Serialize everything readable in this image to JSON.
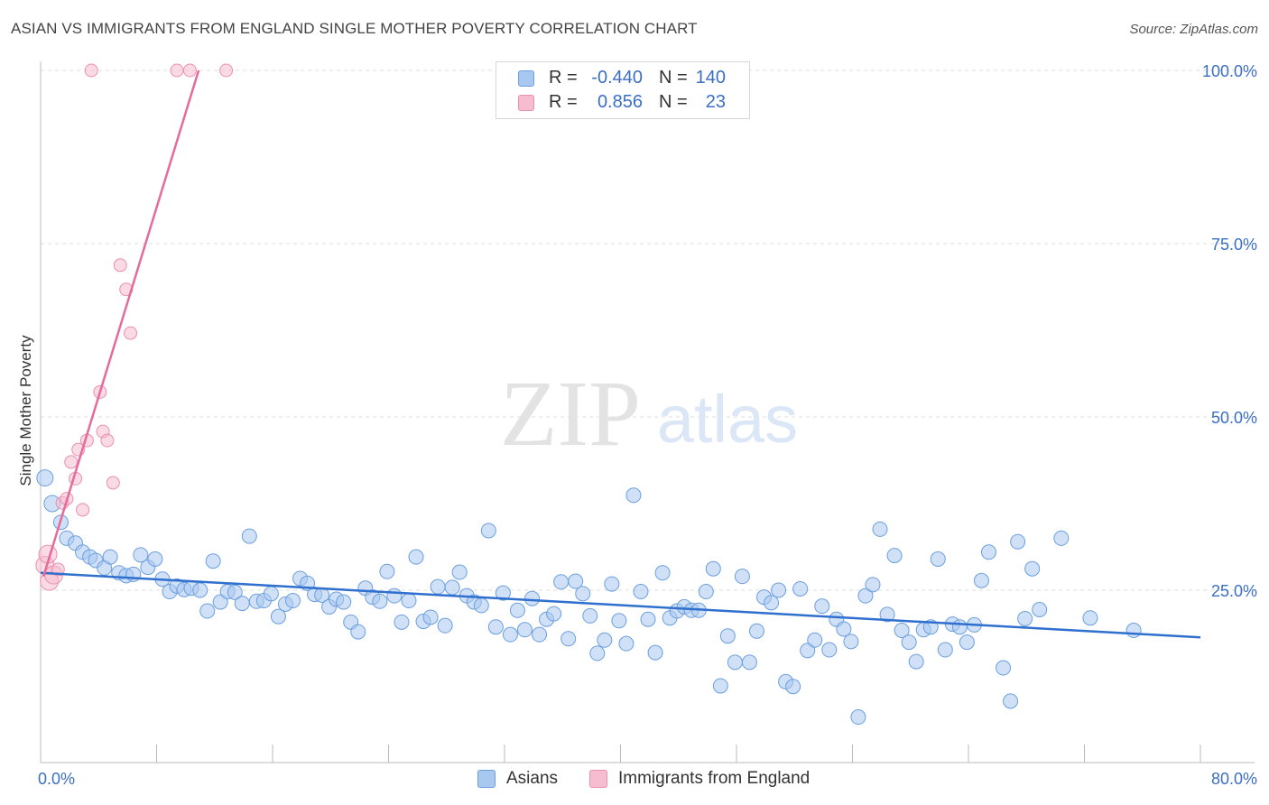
{
  "title": "ASIAN VS IMMIGRANTS FROM ENGLAND SINGLE MOTHER POVERTY CORRELATION CHART",
  "source": "Source: ZipAtlas.com",
  "watermark": {
    "zip": "ZIP",
    "atlas": "atlas"
  },
  "legend_top": [
    {
      "r_label": "R =",
      "r_value": "-0.440",
      "n_label": "N =",
      "n_value": "140"
    },
    {
      "r_label": "R =",
      "r_value": "0.856",
      "n_label": "N =",
      "n_value": "23"
    }
  ],
  "colors": {
    "blue_fill": "#a9c8f0",
    "blue_stroke": "#6b9fe0",
    "blue_line": "#2f6fcd",
    "pink_fill": "#f6bcd0",
    "pink_stroke": "#ec8fb0",
    "pink_line": "#e46b9a",
    "axis_label": "#3b6fc4",
    "grid": "#dedede"
  },
  "chart_data": {
    "type": "scatter",
    "title": "ASIAN VS IMMIGRANTS FROM ENGLAND SINGLE MOTHER POVERTY CORRELATION CHART",
    "xlabel": "",
    "ylabel": "Single Mother Poverty",
    "xlim": [
      0,
      80
    ],
    "ylim": [
      0,
      105
    ],
    "x_tick_labels": [
      "0.0%",
      "80.0%"
    ],
    "y_ticks": [
      25,
      50,
      75,
      100
    ],
    "y_tick_labels": [
      "25.0%",
      "50.0%",
      "75.0%",
      "100.0%"
    ],
    "legend_position": "bottom-center",
    "series": [
      {
        "name": "Asians",
        "r": -0.44,
        "n": 140,
        "trend": [
          [
            0,
            27.5
          ],
          [
            80,
            18.2
          ]
        ],
        "points": [
          [
            0.3,
            41.2
          ],
          [
            0.8,
            37.5
          ],
          [
            1.4,
            34.8
          ],
          [
            1.8,
            32.5
          ],
          [
            2.4,
            31.8
          ],
          [
            2.9,
            30.5
          ],
          [
            3.4,
            29.8
          ],
          [
            3.8,
            29.3
          ],
          [
            4.4,
            28.2
          ],
          [
            4.8,
            29.8
          ],
          [
            5.4,
            27.5
          ],
          [
            5.9,
            27.1
          ],
          [
            6.4,
            27.3
          ],
          [
            6.9,
            30.1
          ],
          [
            7.4,
            28.3
          ],
          [
            7.9,
            29.5
          ],
          [
            8.4,
            26.6
          ],
          [
            8.9,
            24.8
          ],
          [
            9.4,
            25.6
          ],
          [
            9.9,
            25.1
          ],
          [
            10.4,
            25.3
          ],
          [
            11.0,
            25.0
          ],
          [
            11.5,
            22.0
          ],
          [
            11.9,
            29.2
          ],
          [
            12.4,
            23.3
          ],
          [
            12.9,
            24.8
          ],
          [
            13.4,
            24.7
          ],
          [
            13.9,
            23.1
          ],
          [
            14.4,
            32.8
          ],
          [
            14.9,
            23.4
          ],
          [
            15.4,
            23.5
          ],
          [
            15.9,
            24.5
          ],
          [
            16.4,
            21.2
          ],
          [
            16.9,
            23.0
          ],
          [
            17.4,
            23.5
          ],
          [
            17.9,
            26.7
          ],
          [
            18.4,
            26.0
          ],
          [
            18.9,
            24.4
          ],
          [
            19.4,
            24.3
          ],
          [
            19.9,
            22.6
          ],
          [
            20.4,
            23.7
          ],
          [
            20.9,
            23.3
          ],
          [
            21.4,
            20.4
          ],
          [
            21.9,
            19.0
          ],
          [
            22.4,
            25.3
          ],
          [
            22.9,
            24.0
          ],
          [
            23.4,
            23.4
          ],
          [
            23.9,
            27.7
          ],
          [
            24.4,
            24.2
          ],
          [
            24.9,
            20.4
          ],
          [
            25.4,
            23.5
          ],
          [
            25.9,
            29.8
          ],
          [
            26.4,
            20.5
          ],
          [
            26.9,
            21.1
          ],
          [
            27.4,
            25.5
          ],
          [
            27.9,
            19.9
          ],
          [
            28.4,
            25.4
          ],
          [
            28.9,
            27.6
          ],
          [
            29.4,
            24.2
          ],
          [
            29.9,
            23.3
          ],
          [
            30.4,
            22.8
          ],
          [
            30.9,
            33.6
          ],
          [
            31.4,
            19.7
          ],
          [
            31.9,
            24.6
          ],
          [
            32.4,
            18.6
          ],
          [
            32.9,
            22.1
          ],
          [
            33.4,
            19.3
          ],
          [
            33.9,
            23.8
          ],
          [
            34.4,
            18.6
          ],
          [
            34.9,
            20.8
          ],
          [
            35.4,
            21.6
          ],
          [
            35.9,
            26.2
          ],
          [
            36.4,
            18.0
          ],
          [
            36.9,
            26.3
          ],
          [
            37.4,
            24.5
          ],
          [
            37.9,
            21.3
          ],
          [
            38.4,
            15.9
          ],
          [
            38.9,
            17.8
          ],
          [
            39.4,
            25.9
          ],
          [
            39.9,
            20.6
          ],
          [
            40.4,
            17.3
          ],
          [
            40.9,
            38.7
          ],
          [
            41.4,
            24.8
          ],
          [
            41.9,
            20.8
          ],
          [
            42.4,
            16.0
          ],
          [
            42.9,
            27.5
          ],
          [
            43.4,
            21.0
          ],
          [
            43.9,
            22.0
          ],
          [
            44.4,
            22.6
          ],
          [
            44.9,
            22.1
          ],
          [
            45.4,
            22.1
          ],
          [
            45.9,
            24.8
          ],
          [
            46.4,
            28.1
          ],
          [
            46.9,
            11.2
          ],
          [
            47.4,
            18.4
          ],
          [
            47.9,
            14.6
          ],
          [
            48.4,
            27.0
          ],
          [
            48.9,
            14.6
          ],
          [
            49.4,
            19.1
          ],
          [
            49.9,
            24.0
          ],
          [
            50.4,
            23.2
          ],
          [
            50.9,
            25.0
          ],
          [
            51.4,
            11.8
          ],
          [
            51.9,
            11.1
          ],
          [
            52.4,
            25.2
          ],
          [
            52.9,
            16.3
          ],
          [
            53.4,
            17.8
          ],
          [
            53.9,
            22.7
          ],
          [
            54.4,
            16.4
          ],
          [
            54.9,
            20.8
          ],
          [
            55.4,
            19.4
          ],
          [
            55.9,
            17.6
          ],
          [
            56.4,
            6.7
          ],
          [
            56.9,
            24.2
          ],
          [
            57.4,
            25.8
          ],
          [
            57.9,
            33.8
          ],
          [
            58.4,
            21.5
          ],
          [
            58.9,
            30.0
          ],
          [
            59.4,
            19.2
          ],
          [
            59.9,
            17.5
          ],
          [
            60.4,
            14.7
          ],
          [
            60.9,
            19.3
          ],
          [
            61.4,
            19.7
          ],
          [
            61.9,
            29.5
          ],
          [
            62.4,
            16.4
          ],
          [
            62.9,
            20.1
          ],
          [
            63.4,
            19.7
          ],
          [
            63.9,
            17.5
          ],
          [
            64.4,
            20.0
          ],
          [
            64.9,
            26.4
          ],
          [
            65.4,
            30.5
          ],
          [
            66.4,
            13.8
          ],
          [
            66.9,
            9.0
          ],
          [
            67.4,
            32.0
          ],
          [
            67.9,
            20.9
          ],
          [
            68.4,
            28.1
          ],
          [
            68.9,
            22.2
          ],
          [
            70.4,
            32.5
          ],
          [
            72.4,
            21.0
          ],
          [
            75.4,
            19.2
          ]
        ]
      },
      {
        "name": "Immigrants from England",
        "r": 0.856,
        "n": 23,
        "trend": [
          [
            0.2,
            27.0
          ],
          [
            10.9,
            100.0
          ]
        ],
        "points": [
          [
            0.3,
            28.6
          ],
          [
            0.6,
            26.3
          ],
          [
            0.9,
            27.2
          ],
          [
            1.2,
            28.0
          ],
          [
            1.5,
            37.6
          ],
          [
            1.8,
            38.2
          ],
          [
            2.1,
            43.5
          ],
          [
            2.4,
            41.1
          ],
          [
            2.6,
            45.3
          ],
          [
            2.9,
            36.6
          ],
          [
            3.2,
            46.6
          ],
          [
            3.5,
            100.0
          ],
          [
            4.1,
            53.6
          ],
          [
            4.3,
            47.9
          ],
          [
            4.6,
            46.6
          ],
          [
            5.0,
            40.5
          ],
          [
            5.5,
            71.9
          ],
          [
            5.9,
            68.4
          ],
          [
            6.2,
            62.1
          ],
          [
            9.4,
            100.0
          ],
          [
            10.3,
            100.0
          ],
          [
            12.8,
            100.0
          ],
          [
            0.5,
            30.2
          ]
        ]
      }
    ]
  }
}
